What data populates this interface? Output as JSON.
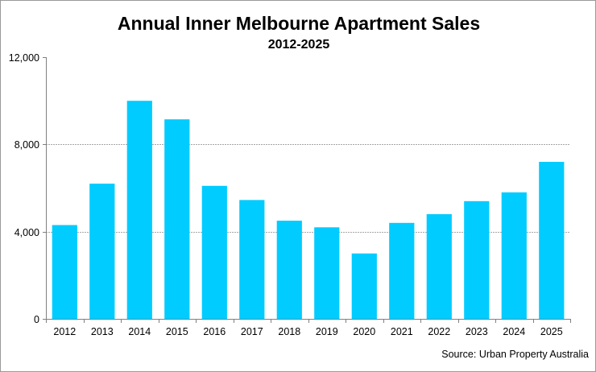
{
  "chart_data": {
    "type": "bar",
    "title": "Annual Inner Melbourne Apartment Sales",
    "subtitle": "2012-2025",
    "xlabel": "",
    "ylabel": "",
    "categories": [
      "2012",
      "2013",
      "2014",
      "2015",
      "2016",
      "2017",
      "2018",
      "2019",
      "2020",
      "2021",
      "2022",
      "2023",
      "2024",
      "2025"
    ],
    "values": [
      4300,
      6200,
      10000,
      9150,
      6100,
      5450,
      4500,
      4200,
      3000,
      4400,
      4800,
      5400,
      5800,
      7200
    ],
    "ylim": [
      0,
      12000
    ],
    "yticks": [
      0,
      4000,
      8000,
      12000
    ],
    "ytick_labels": [
      "0",
      "4,000",
      "8,000",
      "12,000"
    ],
    "grid": true,
    "legend": "none",
    "source": "Source: Urban Property Australia",
    "colors": {
      "bar": "#00ccff",
      "grid": "#a6a6a6",
      "axis": "#808080"
    }
  }
}
